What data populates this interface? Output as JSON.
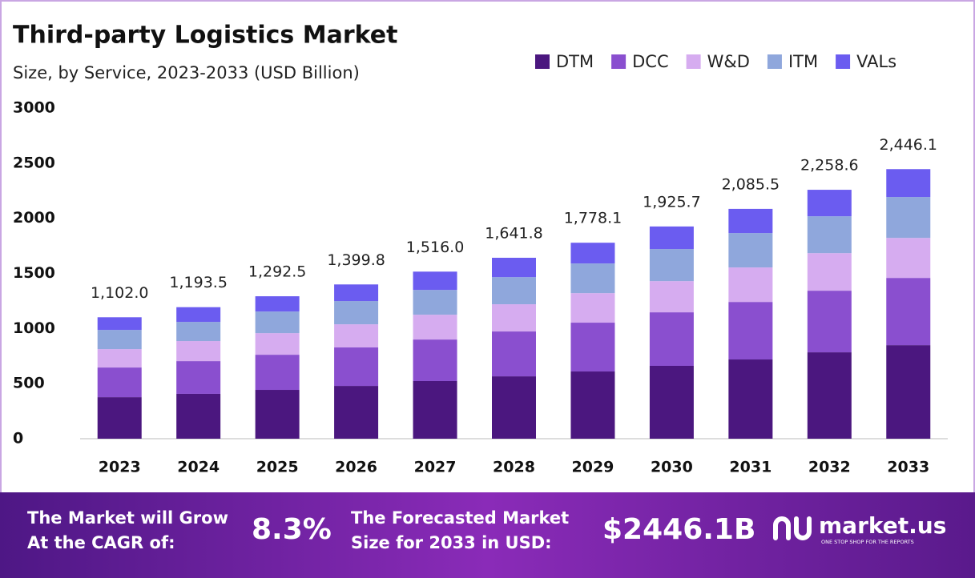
{
  "chart_data": {
    "type": "stacked_bar",
    "title": "Third-party Logistics Market",
    "subtitle": "Size, by Service, 2023-2033 (USD Billion)",
    "categories": [
      "2023",
      "2024",
      "2025",
      "2026",
      "2027",
      "2028",
      "2029",
      "2030",
      "2031",
      "2032",
      "2033"
    ],
    "series": [
      {
        "name": "DTM",
        "color": "#4b177f",
        "values": [
          377,
          407,
          443,
          479,
          523,
          566,
          610,
          661,
          719,
          784,
          849
        ]
      },
      {
        "name": "DCC",
        "color": "#8a4fcf",
        "values": [
          269,
          297,
          319,
          349,
          377,
          407,
          443,
          486,
          522,
          559,
          610
        ]
      },
      {
        "name": "W&D",
        "color": "#d6acf0",
        "values": [
          167,
          182,
          196,
          210,
          225,
          247,
          268,
          283,
          313,
          341,
          363
        ]
      },
      {
        "name": "ITM",
        "color": "#8fa7dc",
        "values": [
          174,
          174,
          196,
          211,
          225,
          246,
          269,
          291,
          312,
          334,
          371
        ]
      },
      {
        "name": "VALs",
        "color": "#6b5cf0",
        "values": [
          115,
          133.5,
          138.5,
          150.8,
          166,
          175.8,
          188.1,
          204.7,
          219.5,
          240.6,
          253.1
        ]
      }
    ],
    "totals": [
      1102.0,
      1193.5,
      1292.5,
      1399.8,
      1516.0,
      1641.8,
      1778.1,
      1925.7,
      2085.5,
      2258.6,
      2446.1
    ],
    "total_labels": [
      "1,102.0",
      "1,193.5",
      "1,292.5",
      "1,399.8",
      "1,516.0",
      "1,641.8",
      "1,778.1",
      "1,925.7",
      "2,085.5",
      "2,258.6",
      "2,446.1"
    ],
    "ylim": [
      0,
      3000
    ],
    "yticks": [
      0,
      500,
      1000,
      1500,
      2000,
      2500,
      3000
    ],
    "grid": false,
    "legend": "top-right"
  },
  "footer": {
    "cagr_text": [
      "The Market will Grow",
      "At the CAGR of:"
    ],
    "cagr_value": "8.3%",
    "forecast_text": [
      "The Forecasted Market",
      "Size for 2033 in USD:"
    ],
    "forecast_value": "$2446.1B",
    "brand": "market.us",
    "tagline": "ONE STOP SHOP FOR THE REPORTS"
  }
}
